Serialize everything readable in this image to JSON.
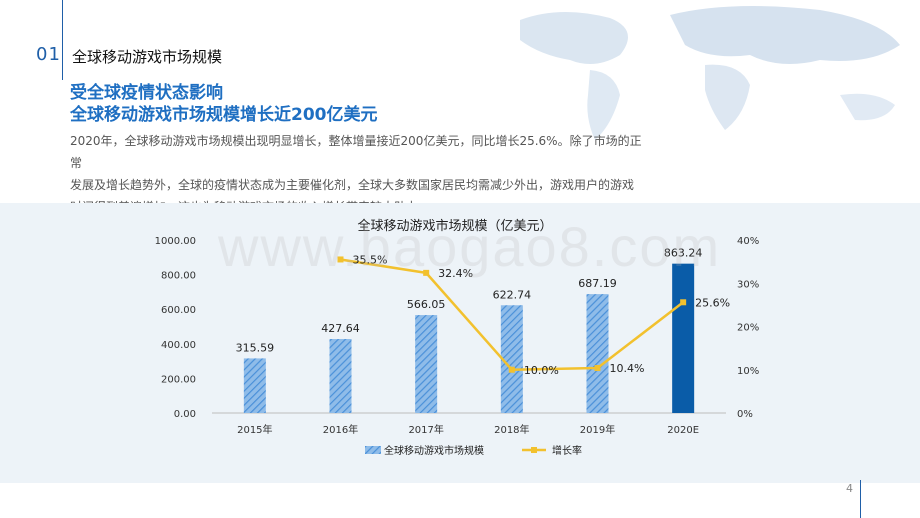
{
  "section": {
    "number": "01",
    "title": "全球移动游戏市场规模"
  },
  "headline": {
    "line1": "受全球疫情状态影响",
    "line2": "全球移动游戏市场规模增长近200亿美元"
  },
  "body": {
    "line1": "2020年，全球移动游戏市场规模出现明显增长，整体增量接近200亿美元，同比增长25.6%。除了市场的正常",
    "line2": "发展及增长趋势外，全球的疫情状态成为主要催化剂，全球大多数国家居民均需减少外出，游戏用户的游戏",
    "line3": "时间得到普遍增加，这也为移动游戏市场的收入增长带来较大助力。"
  },
  "watermark": "www.baogao8.com",
  "page_number": "4",
  "colors": {
    "accent": "#1f6fc2",
    "bar_hatch": "#4a90d9",
    "bar_solid": "#0a5ca8",
    "line": "#f2c12e",
    "panel": "#edf3f8"
  },
  "chart_data": {
    "type": "bar",
    "title": "全球移动游戏市场规模（亿美元）",
    "categories": [
      "2015年",
      "2016年",
      "2017年",
      "2018年",
      "2019年",
      "2020E"
    ],
    "series": [
      {
        "name": "全球移动游戏市场规模",
        "type": "bar",
        "axis": "left",
        "values": [
          315.59,
          427.64,
          566.05,
          622.74,
          687.19,
          863.24
        ],
        "labels": [
          "315.59",
          "427.64",
          "566.05",
          "622.74",
          "687.19",
          "863.24"
        ]
      },
      {
        "name": "增长率",
        "type": "line",
        "axis": "right",
        "values": [
          null,
          35.5,
          32.4,
          10.0,
          10.4,
          25.6
        ],
        "labels": [
          "",
          "35.5%",
          "32.4%",
          "10.0%",
          "10.4%",
          "25.6%"
        ]
      }
    ],
    "y_left": {
      "ticks": [
        "0.00",
        "200.00",
        "400.00",
        "600.00",
        "800.00",
        "1000.00"
      ],
      "ylim": [
        0,
        1000
      ]
    },
    "y_right": {
      "ticks": [
        "0%",
        "10%",
        "20%",
        "30%",
        "40%"
      ],
      "ylim": [
        0,
        40
      ]
    },
    "legend_position": "bottom"
  }
}
